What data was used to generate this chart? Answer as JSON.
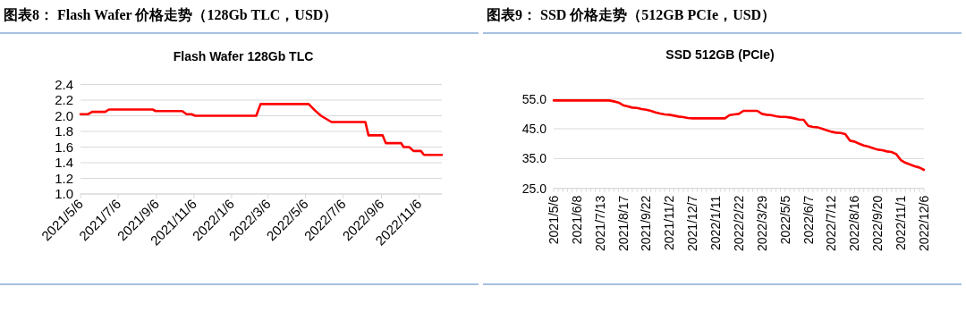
{
  "chart_data": [
    {
      "type": "line",
      "title": "图表8：  Flash Wafer 价格走势（128Gb TLC，USD）",
      "subtitle": "Flash Wafer 128Gb TLC",
      "x": [
        "2021-05-06",
        "2021-05-18",
        "2021-05-25",
        "2021-06-15",
        "2021-06-21",
        "2021-08-31",
        "2021-09-05",
        "2021-10-18",
        "2021-10-25",
        "2021-11-02",
        "2021-11-08",
        "2022-02-15",
        "2022-02-22",
        "2022-05-11",
        "2022-05-21",
        "2022-05-31",
        "2022-06-17",
        "2022-08-11",
        "2022-08-16",
        "2022-09-08",
        "2022-09-13",
        "2022-10-08",
        "2022-10-12",
        "2022-10-21",
        "2022-10-28",
        "2022-11-09",
        "2022-11-14",
        "2022-12-13"
      ],
      "series": [
        {
          "color": "#ff0000",
          "values": [
            2.02,
            2.02,
            2.05,
            2.05,
            2.08,
            2.08,
            2.06,
            2.06,
            2.02,
            2.02,
            2.0,
            2.0,
            2.15,
            2.15,
            2.07,
            2.0,
            1.92,
            1.92,
            1.75,
            1.75,
            1.65,
            1.65,
            1.6,
            1.6,
            1.55,
            1.55,
            1.5,
            1.5
          ]
        }
      ],
      "xlim": [
        "2021-05-06",
        "2022-12-13"
      ],
      "xticks": [
        {
          "value": "2021-05-06",
          "label": "2021/5/6"
        },
        {
          "value": "2021-07-06",
          "label": "2021/7/6"
        },
        {
          "value": "2021-09-06",
          "label": "2021/9/6"
        },
        {
          "value": "2021-11-06",
          "label": "2021/11/6"
        },
        {
          "value": "2022-01-06",
          "label": "2022/1/6"
        },
        {
          "value": "2022-03-06",
          "label": "2022/3/6"
        },
        {
          "value": "2022-05-06",
          "label": "2022/5/6"
        },
        {
          "value": "2022-07-06",
          "label": "2022/7/6"
        },
        {
          "value": "2022-09-06",
          "label": "2022/9/6"
        },
        {
          "value": "2022-11-06",
          "label": "2022/11/6"
        }
      ],
      "ylim": [
        1.0,
        2.4
      ],
      "yticks": [
        {
          "value": 1.0,
          "label": "1.0"
        },
        1.2,
        1.4,
        1.6,
        1.8,
        {
          "value": 2.0,
          "label": "2.0"
        },
        2.2,
        2.4
      ],
      "grid": "y",
      "marker": "none",
      "line_style": "solid"
    },
    {
      "type": "line",
      "title": "图表9：  SSD 价格走势（512GB PCIe，USD）",
      "subtitle": "SSD 512GB (PCIe)",
      "categories": [
        "2021/5/6",
        null,
        null,
        null,
        null,
        "2021/6/8",
        null,
        null,
        null,
        null,
        "2021/7/13",
        null,
        null,
        null,
        null,
        "2021/8/17",
        null,
        null,
        null,
        null,
        "2021/9/22",
        null,
        null,
        null,
        null,
        "2021/11/2",
        null,
        null,
        null,
        null,
        "2021/12/7",
        null,
        null,
        null,
        null,
        "2022/1/11",
        null,
        null,
        null,
        null,
        "2022/2/22",
        null,
        null,
        null,
        null,
        "2022/3/29",
        null,
        null,
        null,
        null,
        "2022/5/5",
        null,
        null,
        null,
        null,
        "2022/6/7",
        null,
        null,
        null,
        null,
        "2022/7/12",
        null,
        null,
        null,
        null,
        "2022/8/16",
        null,
        null,
        null,
        null,
        "2022/9/20",
        null,
        null,
        null,
        null,
        "2022/11/1",
        null,
        null,
        null,
        null,
        "2022/12/6"
      ],
      "series": [
        {
          "color": "#ff0000",
          "values": [
            54.5,
            54.5,
            54.5,
            54.5,
            54.5,
            54.5,
            54.5,
            54.5,
            54.5,
            54.5,
            54.5,
            54.5,
            54.5,
            54.2,
            53.8,
            52.9,
            52.5,
            52.1,
            52.0,
            51.6,
            51.4,
            51.0,
            50.5,
            50.1,
            49.8,
            49.7,
            49.4,
            49.1,
            48.9,
            48.6,
            48.5,
            48.5,
            48.5,
            48.5,
            48.5,
            48.5,
            48.5,
            48.5,
            49.6,
            49.8,
            50.0,
            51.0,
            51.0,
            51.0,
            51.0,
            50.0,
            49.7,
            49.6,
            49.2,
            49.0,
            49.0,
            48.8,
            48.5,
            48.1,
            48.0,
            46.0,
            45.6,
            45.5,
            45.0,
            44.5,
            44.0,
            43.7,
            43.6,
            43.2,
            41.0,
            40.7,
            40.0,
            39.4,
            39.0,
            38.5,
            38.0,
            37.8,
            37.4,
            37.2,
            36.5,
            34.5,
            33.6,
            33.0,
            32.4,
            32.0,
            31.2
          ]
        }
      ],
      "ylim": [
        25,
        55
      ],
      "yticks": [
        {
          "value": 25,
          "label": "25.0"
        },
        {
          "value": 35,
          "label": "35.0"
        },
        {
          "value": 45,
          "label": "45.0"
        },
        {
          "value": 55,
          "label": "55.0"
        }
      ],
      "grid": "y",
      "marker": "none",
      "line_style": "solid"
    }
  ]
}
